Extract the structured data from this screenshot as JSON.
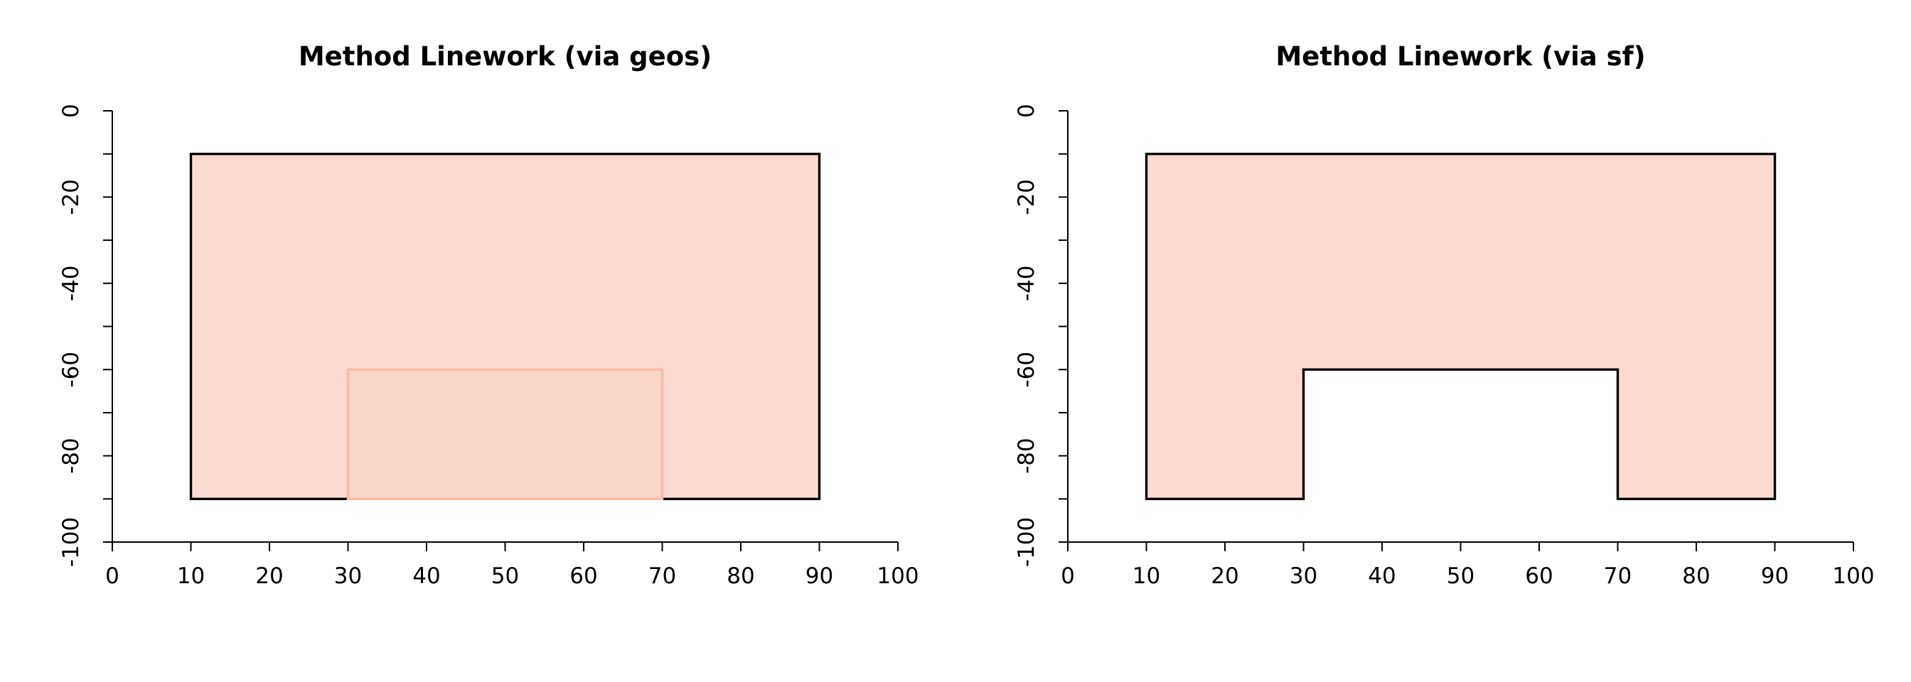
{
  "chart_data": [
    {
      "type": "polygon",
      "title": "Method Linework (via geos)",
      "xlim": [
        0,
        100
      ],
      "xticks": [
        0,
        10,
        20,
        30,
        40,
        50,
        60,
        70,
        80,
        90,
        100
      ],
      "ylim": [
        -100,
        0
      ],
      "yticks": [
        0,
        -20,
        -40,
        -60,
        -80,
        -100
      ],
      "yminorticks": [
        -10,
        -30,
        -50,
        -70,
        -90
      ],
      "series": [
        {
          "x": [
            10,
            90,
            90,
            10
          ],
          "y": [
            -10,
            -10,
            -90,
            -90
          ],
          "fill": "#fcdad2",
          "color": "#000000"
        },
        {
          "x": [
            30,
            70,
            70,
            30
          ],
          "y": [
            -60,
            -60,
            -90,
            -90
          ],
          "fill": "#fcd6cb",
          "color": "#fbbba5"
        }
      ]
    },
    {
      "type": "polygon",
      "title": "Method Linework (via sf)",
      "xlim": [
        0,
        100
      ],
      "xticks": [
        0,
        10,
        20,
        30,
        40,
        50,
        60,
        70,
        80,
        90,
        100
      ],
      "ylim": [
        -100,
        0
      ],
      "yticks": [
        0,
        -20,
        -40,
        -60,
        -80,
        -100
      ],
      "yminorticks": [
        -10,
        -30,
        -50,
        -70,
        -90
      ],
      "series": [
        {
          "x": [
            10,
            90,
            90,
            70,
            70,
            30,
            30,
            10
          ],
          "y": [
            -10,
            -10,
            -90,
            -90,
            -60,
            -60,
            -90,
            -90
          ],
          "fill": "#fcdad2",
          "color": "#000000"
        }
      ]
    }
  ]
}
